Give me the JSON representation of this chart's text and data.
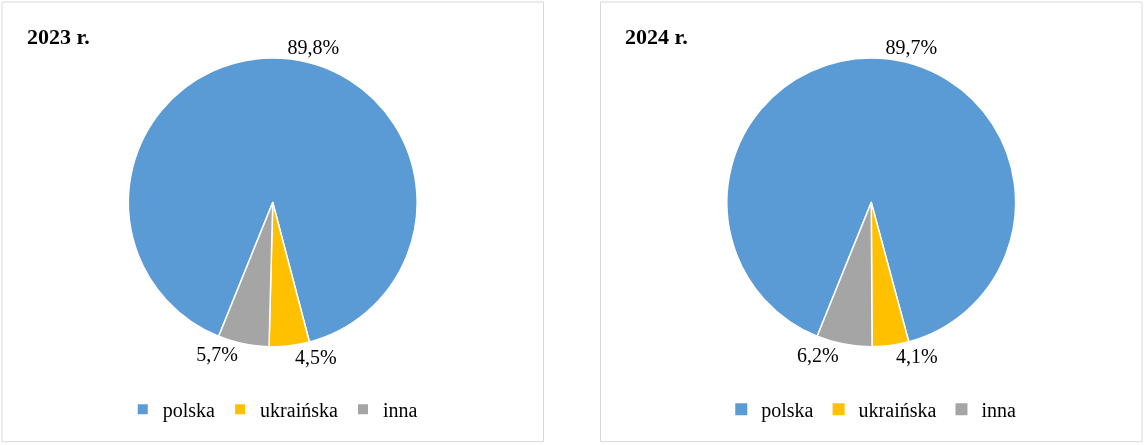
{
  "chart_data": [
    {
      "type": "pie",
      "title": "2023 r.",
      "categories": [
        "polska",
        "ukraińska",
        "inna"
      ],
      "values": [
        89.8,
        4.5,
        5.7
      ],
      "colors": [
        "#5b9bd5",
        "#ffc000",
        "#a5a5a5"
      ],
      "value_labels": [
        "89,8%",
        "4,5%",
        "5,7%"
      ],
      "legend": "bottom"
    },
    {
      "type": "pie",
      "title": "2024 r.",
      "categories": [
        "polska",
        "ukraińska",
        "inna"
      ],
      "values": [
        89.7,
        4.1,
        6.2
      ],
      "colors": [
        "#5b9bd5",
        "#ffc000",
        "#a5a5a5"
      ],
      "value_labels": [
        "89,7%",
        "4,1%",
        "6,2%"
      ],
      "legend": "bottom"
    }
  ]
}
